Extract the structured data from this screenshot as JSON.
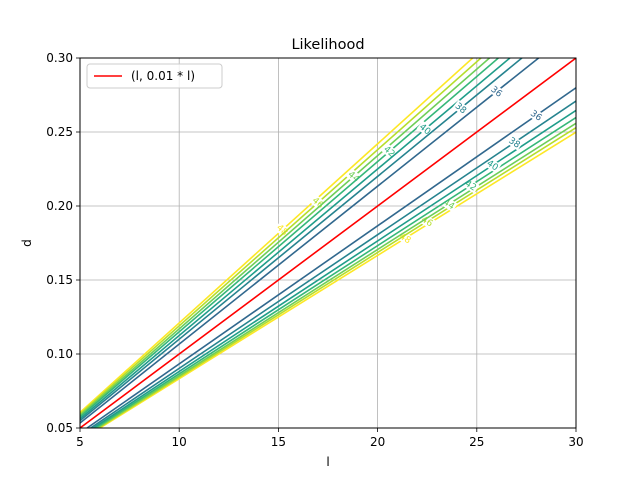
{
  "chart_data": {
    "type": "line",
    "title": "Likelihood",
    "xlabel": "l",
    "ylabel": "d",
    "xlim": [
      5,
      30
    ],
    "ylim": [
      0.05,
      0.3
    ],
    "xticks": [
      "5",
      "10",
      "15",
      "20",
      "25",
      "30"
    ],
    "yticks": [
      "0.05",
      "0.10",
      "0.15",
      "0.20",
      "0.25",
      "0.30"
    ],
    "grid": true,
    "legend_position": "top-left",
    "series": [
      {
        "name": "(l, 0.01 * l)",
        "color": "#ff0000",
        "x": [
          5,
          30
        ],
        "y": [
          0.05,
          0.3
        ]
      }
    ],
    "contours": {
      "colormap": "viridis",
      "levels": [
        {
          "value": 36,
          "color": "#31688e",
          "upper_slope": 0.01067,
          "lower_slope": 0.00933,
          "labels": [
            "36",
            "36"
          ]
        },
        {
          "value": 38,
          "color": "#26838f",
          "upper_slope": 0.011,
          "lower_slope": 0.00903,
          "labels": [
            "38",
            "38"
          ]
        },
        {
          "value": 40,
          "color": "#1f9d8a",
          "upper_slope": 0.01125,
          "lower_slope": 0.00882,
          "labels": [
            "40",
            "40"
          ]
        },
        {
          "value": 42,
          "color": "#35b779",
          "upper_slope": 0.0115,
          "lower_slope": 0.00866,
          "labels": [
            "42",
            "42"
          ]
        },
        {
          "value": 44,
          "color": "#6ece58",
          "upper_slope": 0.0117,
          "lower_slope": 0.00853,
          "labels": [
            "44",
            "44"
          ]
        },
        {
          "value": 46,
          "color": "#b5de2b",
          "upper_slope": 0.0119,
          "lower_slope": 0.00843,
          "labels": [
            "46",
            "46"
          ]
        },
        {
          "value": 48,
          "color": "#fde725",
          "upper_slope": 0.0121,
          "lower_slope": 0.00833,
          "labels": [
            "48",
            "48"
          ]
        }
      ]
    }
  }
}
